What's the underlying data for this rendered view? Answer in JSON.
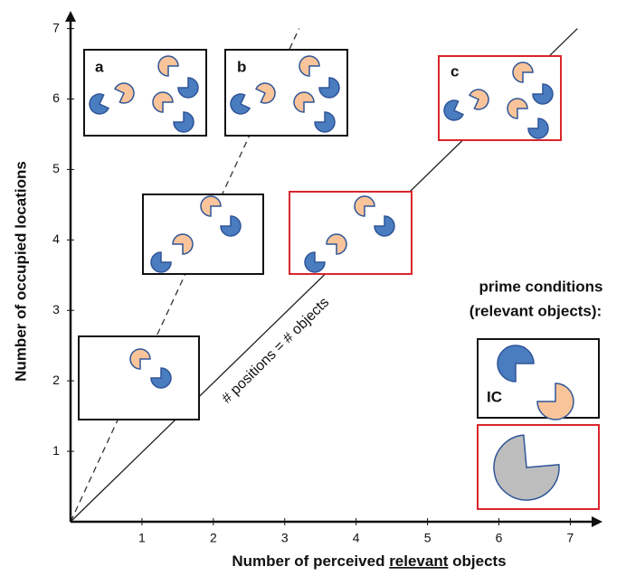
{
  "chart_data": {
    "type": "line",
    "ylabel": "Number of occupied locations",
    "xlabel_parts": [
      "Number of perceived",
      "relevant",
      "objects"
    ],
    "series": [
      {
        "color": "#333333",
        "dashed": true,
        "x": [
          0,
          3.2
        ],
        "values": [
          0,
          7
        ]
      },
      {
        "color": "#222222",
        "dashed": false,
        "x": [
          0,
          7.1
        ],
        "values": [
          0,
          7
        ]
      }
    ],
    "xlim": [
      0,
      7.4
    ],
    "ylim": [
      0,
      7.2
    ],
    "xticks": [
      1,
      2,
      3,
      4,
      5,
      6,
      7
    ],
    "yticks": [
      1,
      2,
      3,
      4,
      5,
      6,
      7
    ],
    "annotations": [
      "a",
      "b",
      "c",
      "# positions = # objects",
      "prime conditions",
      "(relevant objects):",
      "IC"
    ]
  }
}
